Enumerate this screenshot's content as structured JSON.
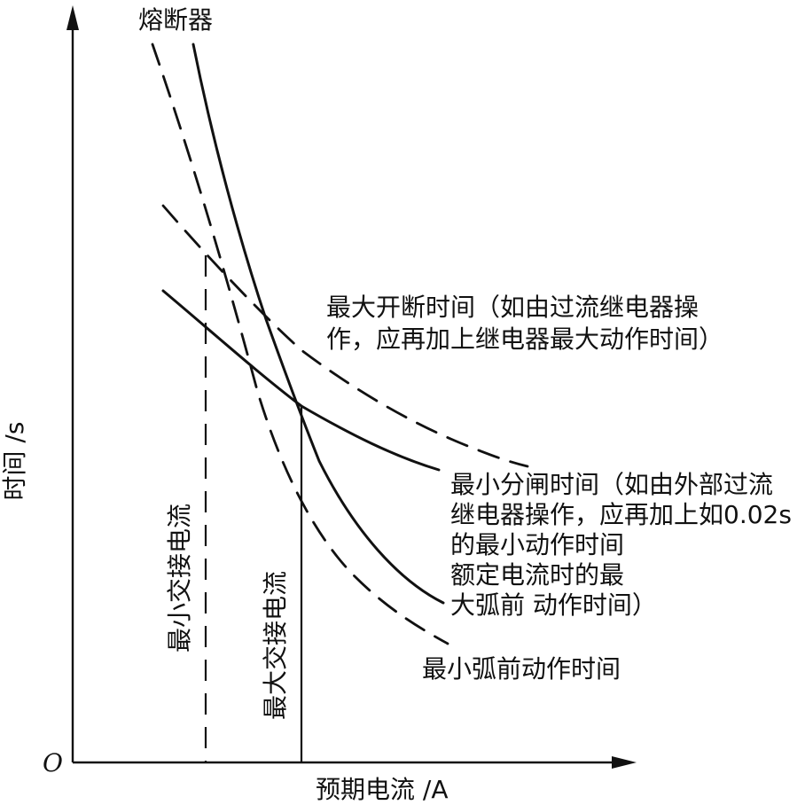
{
  "diagram": {
    "origin_label": "O",
    "x_axis_label": "预期电流 /A",
    "y_axis_label": "时间 /s",
    "fuse_label": "熔断器",
    "max_break_label_line1": "最大开断时间（如由过流继电器操",
    "max_break_label_line2": "作，应再加上继电器最大动作时间）",
    "min_trip_label_line1": "最小分闸时间（如由外部过流",
    "min_trip_label_line2": "继电器操作，应再加上如0.02s",
    "min_trip_label_line3": "的最小动作时间",
    "rated_label_line1": "额定电流时的最",
    "rated_label_line2": "大弧前 动作时间）",
    "min_prearc_label": "最小弧前动作时间",
    "min_transfer_label": "最小交接电流",
    "max_transfer_label": "最大交接电流"
  }
}
